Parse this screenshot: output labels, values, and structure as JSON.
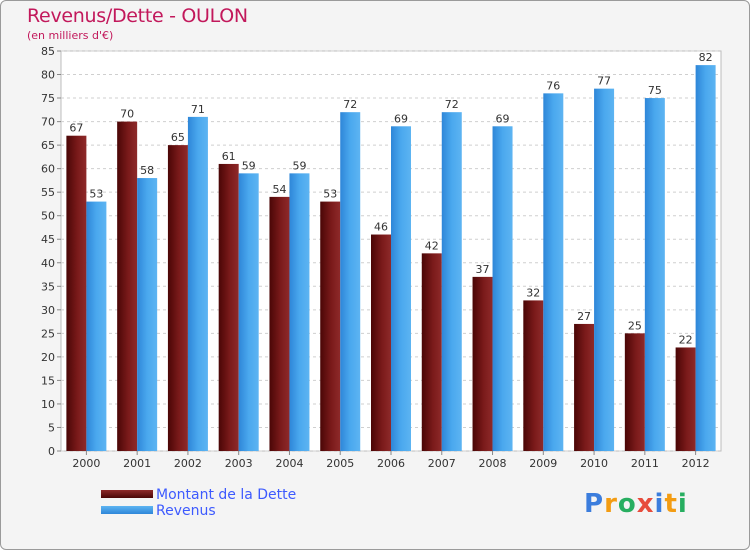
{
  "title": "Revenus/Dette - OULON",
  "subtitle": "(en milliers d'€)",
  "colors": {
    "dette": "#6b0f0f",
    "revenus": "#3a9ee8",
    "title": "#c2185b"
  },
  "legend": {
    "dette_label": "Montant de la Dette",
    "revenus_label": "Revenus"
  },
  "logo": {
    "text": "Proxiti"
  },
  "chart_data": {
    "type": "bar",
    "title": "Revenus/Dette - OULON",
    "ylabel": "(en milliers d'€)",
    "xlabel": "",
    "categories": [
      "2000",
      "2001",
      "2002",
      "2003",
      "2004",
      "2005",
      "2006",
      "2007",
      "2008",
      "2009",
      "2010",
      "2011",
      "2012"
    ],
    "series": [
      {
        "name": "Montant de la Dette",
        "values": [
          67,
          70,
          65,
          61,
          54,
          53,
          46,
          42,
          37,
          32,
          27,
          25,
          22
        ]
      },
      {
        "name": "Revenus",
        "values": [
          53,
          58,
          71,
          59,
          59,
          72,
          69,
          72,
          69,
          76,
          77,
          75,
          82
        ]
      }
    ],
    "ylim": [
      0,
      85
    ],
    "yticks": [
      0,
      5,
      10,
      15,
      20,
      25,
      30,
      35,
      40,
      45,
      50,
      55,
      60,
      65,
      70,
      75,
      80,
      85
    ],
    "grid": true,
    "legend_position": "bottom-left"
  }
}
